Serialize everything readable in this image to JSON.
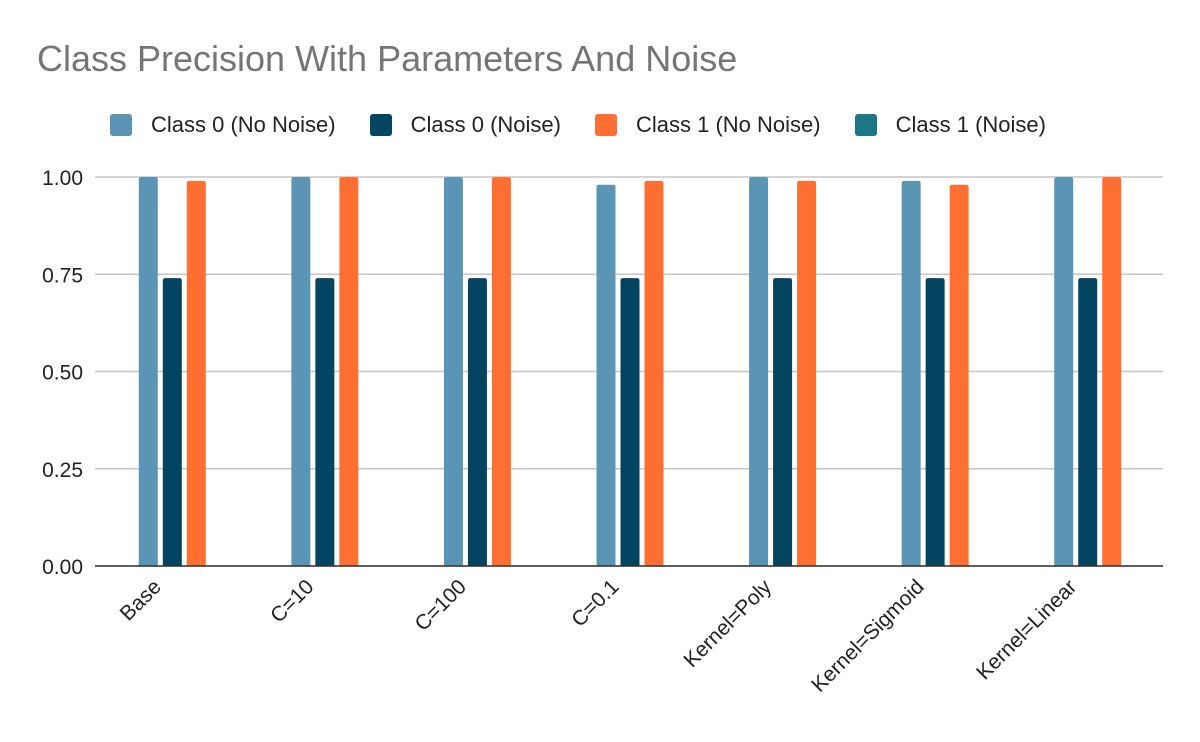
{
  "chart_data": {
    "type": "bar",
    "title": "Class Precision With Parameters And Noise",
    "xlabel": "",
    "ylabel": "",
    "ylim": [
      0,
      1
    ],
    "yticks": [
      "0.00",
      "0.25",
      "0.50",
      "0.75",
      "1.00"
    ],
    "grid": true,
    "legend_position": "top",
    "categories": [
      "Base",
      "C=10",
      "C=100",
      "C=0.1",
      "Kernel=Poly",
      "Kernel=Sigmoid",
      "Kernel=Linear"
    ],
    "series": [
      {
        "name": "Class 0 (No Noise)",
        "color": "#5b95b5",
        "values": [
          1.0,
          1.0,
          1.0,
          0.98,
          1.0,
          0.99,
          1.0
        ]
      },
      {
        "name": "Class 0 (Noise)",
        "color": "#034561",
        "values": [
          0.74,
          0.74,
          0.74,
          0.74,
          0.74,
          0.74,
          0.74
        ]
      },
      {
        "name": "Class 1 (No Noise)",
        "color": "#ff6f31",
        "values": [
          0.99,
          1.0,
          1.0,
          0.99,
          0.99,
          0.98,
          1.0
        ]
      },
      {
        "name": "Class 1 (Noise)",
        "color": "#1c7685",
        "values": [
          0,
          0,
          0,
          0,
          0,
          0,
          0
        ]
      }
    ]
  }
}
